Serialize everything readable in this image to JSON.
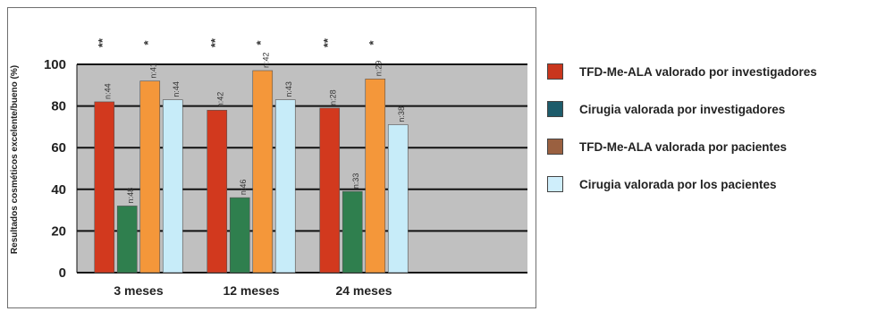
{
  "chart_data": {
    "type": "bar",
    "title": "",
    "xlabel": "",
    "ylabel": "Resultados cosméticos excelente/bueno (%)",
    "ylim": [
      0,
      100
    ],
    "yticks": [
      0,
      20,
      40,
      60,
      80,
      100
    ],
    "categories": [
      "3 meses",
      "12 meses",
      "24 meses"
    ],
    "series": [
      {
        "name": "TFD-Me-ALA valorado por investigadores",
        "color": "#d2391e",
        "values": [
          82,
          78,
          79
        ],
        "n_labels": [
          "n:44",
          "n:42",
          "n:28"
        ]
      },
      {
        "name": "Cirugia valorada por investigadores",
        "color": "#2f7f4e",
        "values": [
          32,
          36,
          39
        ],
        "n_labels": [
          "n:48",
          "n:46",
          "n:33"
        ]
      },
      {
        "name": "TFD-Me-ALA valorada por pacientes",
        "color": "#f4973a",
        "values": [
          92,
          97,
          93
        ],
        "n_labels": [
          "n:41",
          "n:42",
          "n:29"
        ]
      },
      {
        "name": "Cirugia valorada por los pacientes",
        "color": "#c7ecf9",
        "values": [
          83,
          83,
          71
        ],
        "n_labels": [
          "n:44",
          "n:43",
          "n:38"
        ]
      }
    ],
    "significance": [
      {
        "category": "3 meses",
        "markers": [
          "**",
          "*"
        ]
      },
      {
        "category": "12 meses",
        "markers": [
          "**",
          "*"
        ]
      },
      {
        "category": "24 meses",
        "markers": [
          "**",
          "*"
        ]
      }
    ],
    "legend": {
      "position": "right",
      "swatch_colors": [
        "#c9361d",
        "#1d5c6b",
        "#9a6040",
        "#cfeefb"
      ]
    },
    "grid": true,
    "plot_background": "#c0c0c0"
  }
}
